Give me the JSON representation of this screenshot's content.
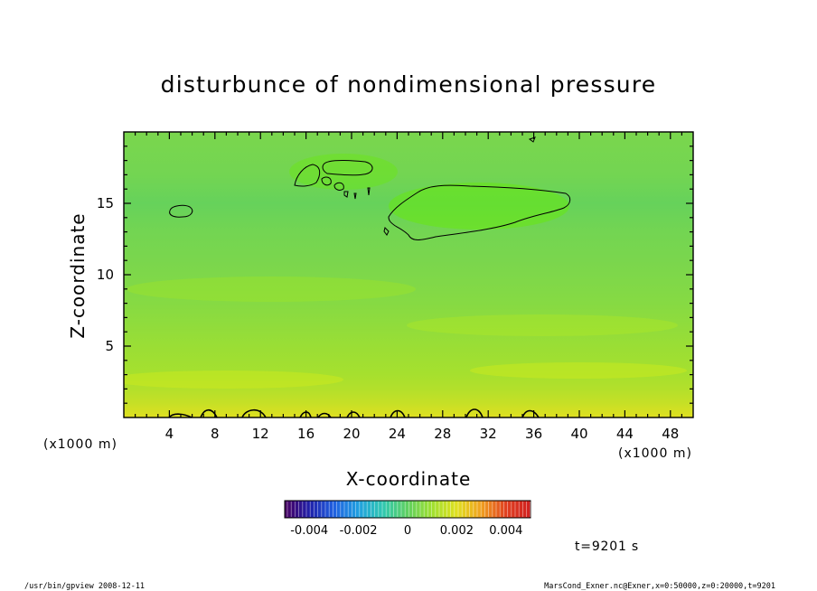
{
  "chart_data": {
    "type": "heatmap",
    "title": "disturbunce of nondimensional pressure",
    "xlabel": "X-coordinate",
    "ylabel": "Z-coordinate",
    "x_unit_left": "(x1000 m)",
    "x_unit_right": "(x1000 m)",
    "xlim": [
      0,
      50
    ],
    "ylim": [
      0,
      20
    ],
    "x_ticks": [
      "4",
      "8",
      "12",
      "16",
      "20",
      "24",
      "28",
      "32",
      "36",
      "40",
      "44",
      "48"
    ],
    "y_ticks": [
      "5",
      "10",
      "15"
    ],
    "x_tick_values": [
      4,
      8,
      12,
      16,
      20,
      24,
      28,
      32,
      36,
      40,
      44,
      48
    ],
    "y_tick_values": [
      5,
      10,
      15
    ],
    "z_profile": {
      "z": [
        0,
        1,
        2,
        3,
        5,
        8,
        11,
        13,
        15,
        17,
        20
      ],
      "value": [
        0.002,
        0.0016,
        0.0013,
        0.0011,
        0.0009,
        0.0006,
        0.0004,
        0.0003,
        0.0001,
        0.0003,
        0.0004
      ]
    },
    "contour_level": 0,
    "colorbar": {
      "min": -0.005,
      "max": 0.005,
      "tick_labels": [
        "-0.004",
        "-0.002",
        "0",
        "0.002",
        "0.004"
      ],
      "tick_values": [
        -0.004,
        -0.002,
        0,
        0.002,
        0.004
      ],
      "colors": [
        "#4a0060",
        "#2020a8",
        "#2060e0",
        "#20a0e0",
        "#30c8b0",
        "#60d060",
        "#a0e030",
        "#e0e020",
        "#f0a020",
        "#e04020",
        "#d02020"
      ]
    },
    "annotation": "t=9201 s"
  },
  "footer": {
    "left": "/usr/bin/gpview   2008-12-11",
    "right": "MarsCond_Exner.nc@Exner,x=0:50000,z=0:20000,t=9201"
  }
}
